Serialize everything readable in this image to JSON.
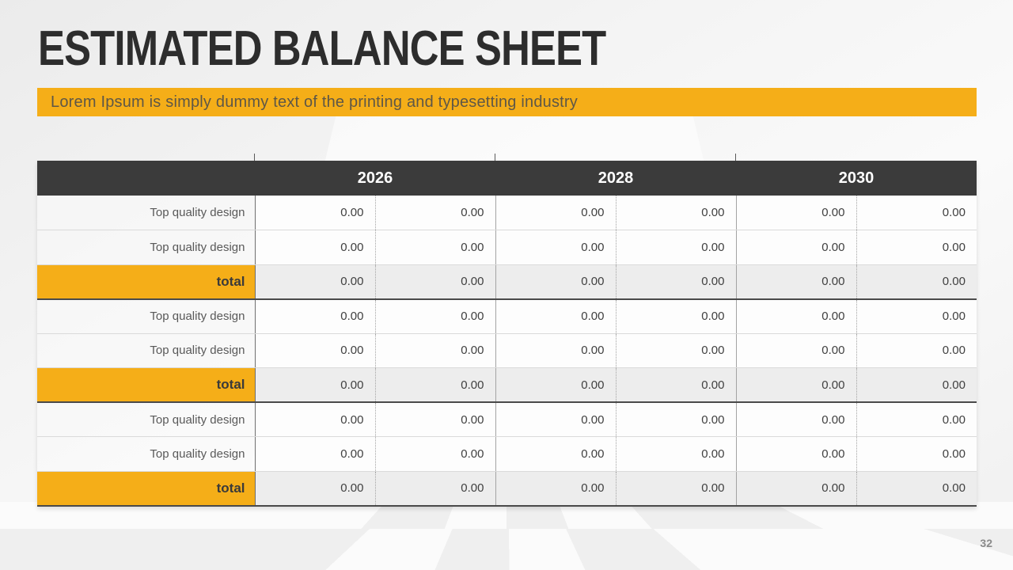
{
  "slide": {
    "title": "ESTIMATED BALANCE SHEET",
    "banner_text": "Lorem Ipsum is simply dummy text of the printing and typesetting industry",
    "page_number": "32"
  },
  "table": {
    "header": {
      "years": [
        "2026",
        "2028",
        "2030"
      ]
    },
    "rows": [
      {
        "type": "data",
        "label": "Top quality design",
        "values": [
          "0.00",
          "0.00",
          "0.00",
          "0.00",
          "0.00",
          "0.00"
        ]
      },
      {
        "type": "data",
        "label": "Top quality design",
        "values": [
          "0.00",
          "0.00",
          "0.00",
          "0.00",
          "0.00",
          "0.00"
        ]
      },
      {
        "type": "total",
        "label": "total",
        "values": [
          "0.00",
          "0.00",
          "0.00",
          "0.00",
          "0.00",
          "0.00"
        ]
      },
      {
        "type": "data",
        "label": "Top quality design",
        "values": [
          "0.00",
          "0.00",
          "0.00",
          "0.00",
          "0.00",
          "0.00"
        ]
      },
      {
        "type": "data",
        "label": "Top quality design",
        "values": [
          "0.00",
          "0.00",
          "0.00",
          "0.00",
          "0.00",
          "0.00"
        ]
      },
      {
        "type": "total",
        "label": "total",
        "values": [
          "0.00",
          "0.00",
          "0.00",
          "0.00",
          "0.00",
          "0.00"
        ]
      },
      {
        "type": "data",
        "label": "Top quality design",
        "values": [
          "0.00",
          "0.00",
          "0.00",
          "0.00",
          "0.00",
          "0.00"
        ]
      },
      {
        "type": "data",
        "label": "Top quality design",
        "values": [
          "0.00",
          "0.00",
          "0.00",
          "0.00",
          "0.00",
          "0.00"
        ]
      },
      {
        "type": "total",
        "label": "total",
        "values": [
          "0.00",
          "0.00",
          "0.00",
          "0.00",
          "0.00",
          "0.00"
        ]
      }
    ]
  },
  "colors": {
    "accent_yellow": "#F5AE18",
    "header_dark": "#3B3B3B",
    "title_text": "#2D2D2D",
    "banner_text": "#5E5747",
    "row_label_text": "#595959",
    "value_text": "#404040",
    "total_cell_bg": "#EDEDED",
    "row_border": "#DADADA",
    "total_border": "#4A4A4A",
    "divider": "#A3A3A3",
    "label_divider": "#6F6F6F",
    "page_number_text": "#8A8A8A",
    "floor_dark": "#EFEFEF",
    "floor_light": "#FBFBFB"
  }
}
